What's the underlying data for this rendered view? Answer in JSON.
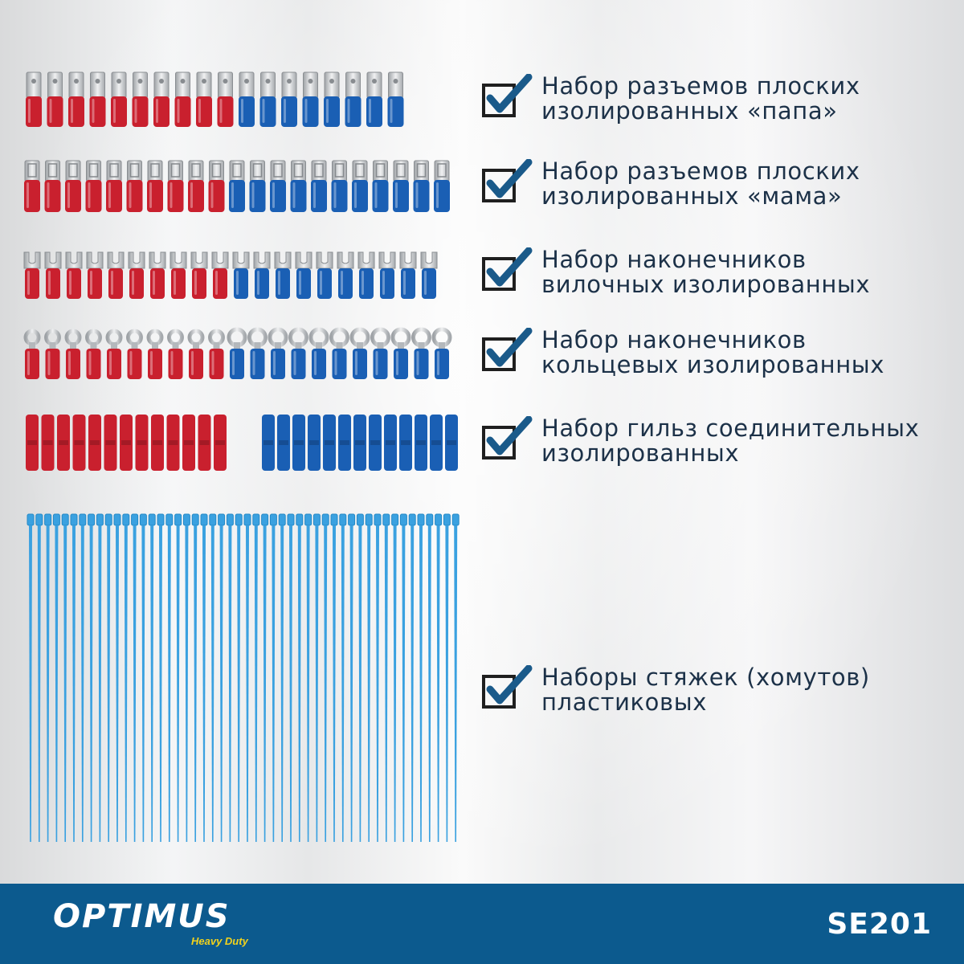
{
  "features": [
    {
      "line1": "Набор разъемов плоских",
      "line2": "изолированных «папа»"
    },
    {
      "line1": "Набор разъемов плоских",
      "line2": "изолированных «мама»"
    },
    {
      "line1": "Набор наконечников",
      "line2": "вилочных изолированных"
    },
    {
      "line1": "Набор наконечников",
      "line2": "кольцевых изолированных"
    },
    {
      "line1": "Набор гильз соединительных",
      "line2": "изолированных"
    },
    {
      "line1": "Наборы стяжек (хомутов)",
      "line2": "пластиковых"
    }
  ],
  "brand": {
    "name": "OPTIMUS",
    "tagline": "Heavy Duty"
  },
  "sku": "SE201",
  "colors": {
    "red": "#c9202e",
    "blue": "#1a5fb4",
    "tie": "#3aa1e0",
    "metal": "#d2d4d6",
    "text": "#1c3148",
    "check": "#1a5a8a",
    "footer": "#0c5a8e",
    "tagline": "#f2d21c"
  }
}
